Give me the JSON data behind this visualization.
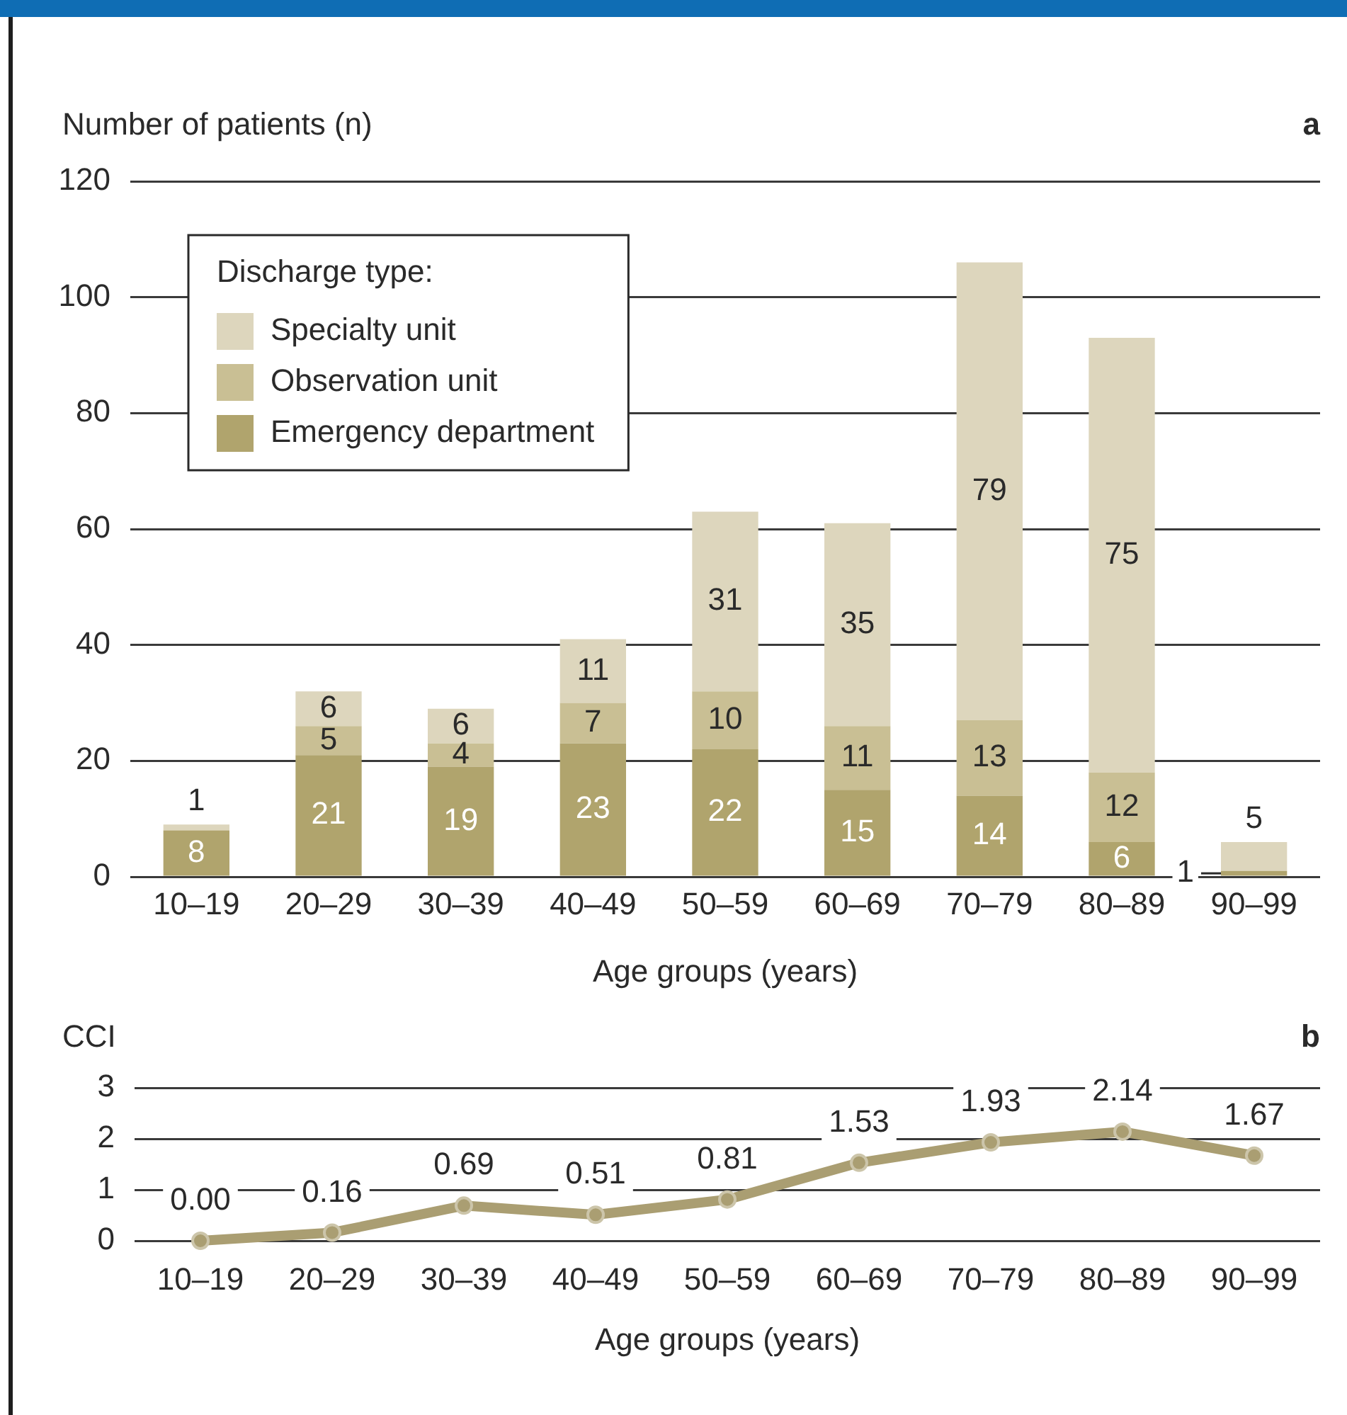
{
  "chart_data": [
    {
      "type": "bar",
      "stacked": true,
      "ylabel": "Number of patients (n)",
      "xlabel": "Age groups (years)",
      "legend_title": "Discharge type:",
      "annotations": [
        "a"
      ],
      "categories": [
        "10–19",
        "20–29",
        "30–39",
        "40–49",
        "50–59",
        "60–69",
        "70–79",
        "80–89",
        "90–99"
      ],
      "series": [
        {
          "name": "Emergency department",
          "color": "#b0a46d",
          "values": [
            8,
            21,
            19,
            23,
            22,
            15,
            14,
            6,
            1
          ],
          "value_labels": [
            "8",
            "21",
            "19",
            "23",
            "22",
            "15",
            "14",
            "6",
            "1"
          ]
        },
        {
          "name": "Observation unit",
          "color": "#c9bf94",
          "values": [
            0,
            5,
            4,
            7,
            10,
            11,
            13,
            12,
            0
          ],
          "value_labels": [
            null,
            "5",
            "4",
            "7",
            "10",
            "11",
            "13",
            "12",
            null
          ]
        },
        {
          "name": "Specialty unit",
          "color": "#ddd6bd",
          "values": [
            1,
            6,
            6,
            11,
            31,
            35,
            79,
            75,
            5
          ],
          "value_labels": [
            "1",
            "6",
            "6",
            "11",
            "31",
            "35",
            "79",
            "75",
            "5"
          ]
        }
      ],
      "ylim": [
        0,
        120
      ],
      "yticks": [
        0,
        20,
        40,
        60,
        80,
        100,
        120
      ],
      "grid": "y",
      "legend": "top left"
    },
    {
      "type": "line",
      "ylabel": "CCI",
      "xlabel": "Age groups (years)",
      "annotations": [
        "b"
      ],
      "categories": [
        "10–19",
        "20–29",
        "30–39",
        "40–49",
        "50–59",
        "60–69",
        "70–79",
        "80–89",
        "90–99"
      ],
      "series": [
        {
          "color": "#aa9e72",
          "values": [
            0.0,
            0.16,
            0.69,
            0.51,
            0.81,
            1.53,
            1.93,
            2.14,
            1.67
          ],
          "value_labels": [
            "0.00",
            "0.16",
            "0.69",
            "0.51",
            "0.81",
            "1.53",
            "1.93",
            "2.14",
            "1.67"
          ]
        }
      ],
      "ylim": [
        0,
        3
      ],
      "yticks": [
        0,
        1,
        2,
        3
      ],
      "grid": "y",
      "marker": "circle",
      "line_style": "solid"
    }
  ]
}
